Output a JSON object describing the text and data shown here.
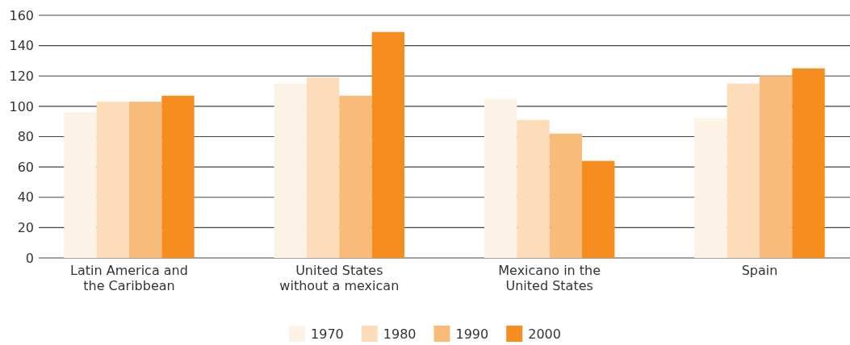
{
  "chart_data": {
    "type": "bar",
    "categories": [
      "Latin America and the Caribbean",
      "United States without a mexican",
      "Mexicano in the United States",
      "Spain"
    ],
    "series": [
      {
        "name": "1970",
        "color": "#fdf2e6",
        "values": [
          96,
          115,
          105,
          92
        ]
      },
      {
        "name": "1980",
        "color": "#fddcba",
        "values": [
          103,
          119,
          91,
          115
        ]
      },
      {
        "name": "1990",
        "color": "#f9bb7a",
        "values": [
          103,
          107,
          82,
          120
        ]
      },
      {
        "name": "2000",
        "color": "#f68e1f",
        "values": [
          107,
          149,
          64,
          125
        ]
      }
    ],
    "ylim": [
      0,
      160
    ],
    "yticks": [
      0,
      20,
      40,
      60,
      80,
      100,
      120,
      140,
      160
    ],
    "grid": "y",
    "legend": "bottom"
  }
}
